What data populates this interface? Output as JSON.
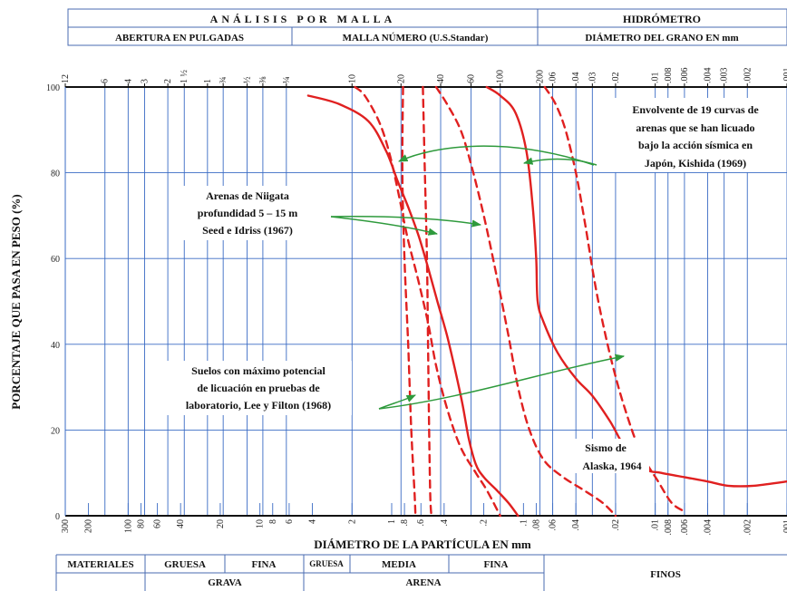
{
  "header": {
    "analysis_title": "ANÁLISIS POR MALLA",
    "hydrometer_title": "HIDRÓMETRO",
    "opening_inches": "ABERTURA EN PULGADAS",
    "mesh_number": "MALLA NÚMERO (U.S.Standar)",
    "grain_diameter": "DIÁMETRO DEL GRANO EN mm"
  },
  "footer": {
    "materials": "MATERIALES",
    "gruesa": "GRUESA",
    "fina": "FINA",
    "arena_gruesa": "GRUESA",
    "media": "MEDIA",
    "arena_fina": "FINA",
    "grava": "GRAVA",
    "arena": "ARENA",
    "finos": "FINOS"
  },
  "chart_data": {
    "type": "line",
    "xlabel": "DIÁMETRO DE LA PARTÍCULA EN mm",
    "ylabel": "PORCENTAJE QUE PASA EN PESO (%)",
    "x_scale": "log",
    "x_reversed": true,
    "xlim": [
      300,
      0.001
    ],
    "ylim": [
      0,
      100
    ],
    "y_ticks": [
      0,
      20,
      40,
      60,
      80,
      100
    ],
    "y_tick_labels": [
      "0",
      "20",
      "40",
      "60",
      "80",
      "100"
    ],
    "bottom_ticks": [
      {
        "label": "300",
        "x": 300
      },
      {
        "label": "200",
        "x": 200
      },
      {
        "label": "100",
        "x": 100
      },
      {
        "label": "80",
        "x": 80
      },
      {
        "label": "60",
        "x": 60
      },
      {
        "label": "40",
        "x": 40
      },
      {
        "label": "20",
        "x": 20
      },
      {
        "label": "10",
        "x": 10
      },
      {
        "label": "8",
        "x": 8
      },
      {
        "label": "6",
        "x": 6
      },
      {
        "label": "4",
        "x": 4
      },
      {
        "label": "2",
        "x": 2
      },
      {
        "label": "1",
        "x": 1
      },
      {
        "label": ".8",
        "x": 0.8
      },
      {
        "label": ".6",
        "x": 0.6
      },
      {
        "label": ".4",
        "x": 0.4
      },
      {
        "label": ".2",
        "x": 0.2
      },
      {
        "label": ".1",
        "x": 0.1
      },
      {
        "label": ".08",
        "x": 0.08
      },
      {
        "label": ".06",
        "x": 0.06
      },
      {
        "label": ".04",
        "x": 0.04
      },
      {
        "label": ".02",
        "x": 0.02
      },
      {
        "label": ".01",
        "x": 0.01
      },
      {
        "label": ".008",
        "x": 0.008
      },
      {
        "label": ".006",
        "x": 0.006
      },
      {
        "label": ".004",
        "x": 0.004
      },
      {
        "label": ".002",
        "x": 0.002
      },
      {
        "label": ".001",
        "x": 0.001
      }
    ],
    "top_ticks": [
      {
        "label": "12",
        "x": 300
      },
      {
        "label": "6",
        "x": 150
      },
      {
        "label": "4",
        "x": 100
      },
      {
        "label": "3",
        "x": 75
      },
      {
        "label": "2",
        "x": 50
      },
      {
        "label": "1 ½",
        "x": 37.5
      },
      {
        "label": "1",
        "x": 25
      },
      {
        "label": "¾",
        "x": 19
      },
      {
        "label": "½",
        "x": 12.5
      },
      {
        "label": "⅜",
        "x": 9.5
      },
      {
        "label": "¼",
        "x": 6.3
      },
      {
        "label": "10",
        "x": 2
      },
      {
        "label": "20",
        "x": 0.85
      },
      {
        "label": "40",
        "x": 0.425
      },
      {
        "label": "60",
        "x": 0.25
      },
      {
        "label": "100",
        "x": 0.15
      },
      {
        "label": "200",
        "x": 0.075
      },
      {
        "label": ".06",
        "x": 0.06
      },
      {
        "label": ".04",
        "x": 0.04
      },
      {
        "label": ".03",
        "x": 0.03
      },
      {
        "label": ".02",
        "x": 0.02
      },
      {
        "label": ".01",
        "x": 0.01
      },
      {
        "label": ".008",
        "x": 0.008
      },
      {
        "label": ".006",
        "x": 0.006
      },
      {
        "label": ".004",
        "x": 0.004
      },
      {
        "label": ".003",
        "x": 0.003
      },
      {
        "label": ".002",
        "x": 0.002
      },
      {
        "label": ".001",
        "x": 0.001
      }
    ],
    "series": [
      {
        "id": "niigata_coarse",
        "style": "solid",
        "color": "#e02020",
        "points": [
          [
            4.3,
            98
          ],
          [
            2.5,
            96
          ],
          [
            1.5,
            92
          ],
          [
            1.1,
            85
          ],
          [
            0.9,
            78
          ],
          [
            0.75,
            72
          ],
          [
            0.62,
            65
          ],
          [
            0.52,
            57
          ],
          [
            0.45,
            50
          ],
          [
            0.38,
            42
          ],
          [
            0.33,
            34
          ],
          [
            0.29,
            26
          ],
          [
            0.26,
            18
          ],
          [
            0.23,
            12
          ],
          [
            0.2,
            9
          ],
          [
            0.16,
            6
          ],
          [
            0.13,
            3
          ],
          [
            0.11,
            0
          ]
        ]
      },
      {
        "id": "niigata_fine",
        "style": "solid",
        "color": "#e02020",
        "points": [
          [
            0.19,
            100
          ],
          [
            0.15,
            98
          ],
          [
            0.115,
            94
          ],
          [
            0.095,
            85
          ],
          [
            0.085,
            72
          ],
          [
            0.08,
            60
          ],
          [
            0.078,
            50
          ],
          [
            0.07,
            45
          ],
          [
            0.055,
            38
          ],
          [
            0.04,
            32
          ],
          [
            0.03,
            28
          ],
          [
            0.022,
            22
          ],
          [
            0.017,
            16
          ],
          [
            0.012,
            11
          ],
          [
            0.009,
            10
          ],
          [
            0.006,
            9
          ],
          [
            0.004,
            8
          ],
          [
            0.0028,
            7
          ],
          [
            0.0018,
            7
          ],
          [
            0.001,
            8
          ]
        ]
      },
      {
        "id": "kishida_left",
        "style": "dashed",
        "color": "#e02020",
        "points": [
          [
            1.9,
            100
          ],
          [
            1.6,
            98
          ],
          [
            1.25,
            92
          ],
          [
            1.05,
            85
          ],
          [
            0.9,
            76
          ],
          [
            0.76,
            65
          ],
          [
            0.63,
            55
          ],
          [
            0.53,
            45
          ],
          [
            0.46,
            35
          ],
          [
            0.38,
            25
          ],
          [
            0.3,
            16
          ],
          [
            0.23,
            10
          ],
          [
            0.19,
            6
          ],
          [
            0.15,
            0
          ]
        ]
      },
      {
        "id": "lee_left",
        "style": "dashed",
        "color": "#e02020",
        "points": [
          [
            0.82,
            100
          ],
          [
            0.83,
            80
          ],
          [
            0.8,
            60
          ],
          [
            0.75,
            40
          ],
          [
            0.71,
            20
          ],
          [
            0.67,
            5
          ],
          [
            0.66,
            0
          ]
        ]
      },
      {
        "id": "lee_right",
        "style": "dashed",
        "color": "#e02020",
        "points": [
          [
            0.58,
            100
          ],
          [
            0.56,
            80
          ],
          [
            0.54,
            60
          ],
          [
            0.53,
            40
          ],
          [
            0.52,
            20
          ],
          [
            0.51,
            5
          ],
          [
            0.5,
            0
          ]
        ]
      },
      {
        "id": "kishida_right",
        "style": "dashed",
        "color": "#e02020",
        "points": [
          [
            0.069,
            100
          ],
          [
            0.057,
            96
          ],
          [
            0.048,
            90
          ],
          [
            0.04,
            80
          ],
          [
            0.034,
            68
          ],
          [
            0.029,
            55
          ],
          [
            0.025,
            45
          ],
          [
            0.021,
            35
          ],
          [
            0.017,
            25
          ],
          [
            0.013,
            15
          ],
          [
            0.0095,
            8
          ],
          [
            0.0075,
            3
          ],
          [
            0.006,
            1
          ]
        ]
      },
      {
        "id": "middle_dashed",
        "style": "dashed",
        "color": "#e02020",
        "points": [
          [
            0.46,
            100
          ],
          [
            0.38,
            96
          ],
          [
            0.3,
            90
          ],
          [
            0.25,
            82
          ],
          [
            0.2,
            70
          ],
          [
            0.16,
            56
          ],
          [
            0.13,
            42
          ],
          [
            0.11,
            30
          ],
          [
            0.09,
            20
          ],
          [
            0.07,
            13
          ],
          [
            0.05,
            9
          ],
          [
            0.035,
            6
          ],
          [
            0.025,
            3
          ],
          [
            0.02,
            0
          ]
        ]
      }
    ],
    "annotations": [
      {
        "id": "kishida",
        "lines": [
          "Envolvente de 19 curvas de",
          "arenas que se han licuado",
          "bajo la acción sísmica en",
          "Japón, Kishida (1969)"
        ]
      },
      {
        "id": "niigata",
        "lines": [
          "Arenas de Niigata",
          "profundidad 5 – 15 m",
          "Seed e Idriss (1967)"
        ]
      },
      {
        "id": "lee",
        "lines": [
          "Suelos con máximo potencial",
          "de licuación en pruebas de",
          "laboratorio, Lee y Filton (1968)"
        ]
      },
      {
        "id": "alaska",
        "lines": [
          "Sismo de",
          "Alaska, 1964"
        ]
      }
    ],
    "grid": true,
    "colors": {
      "curve": "#e02020",
      "grid": "#3a6bc4",
      "arrow": "#2e9a3c"
    }
  }
}
